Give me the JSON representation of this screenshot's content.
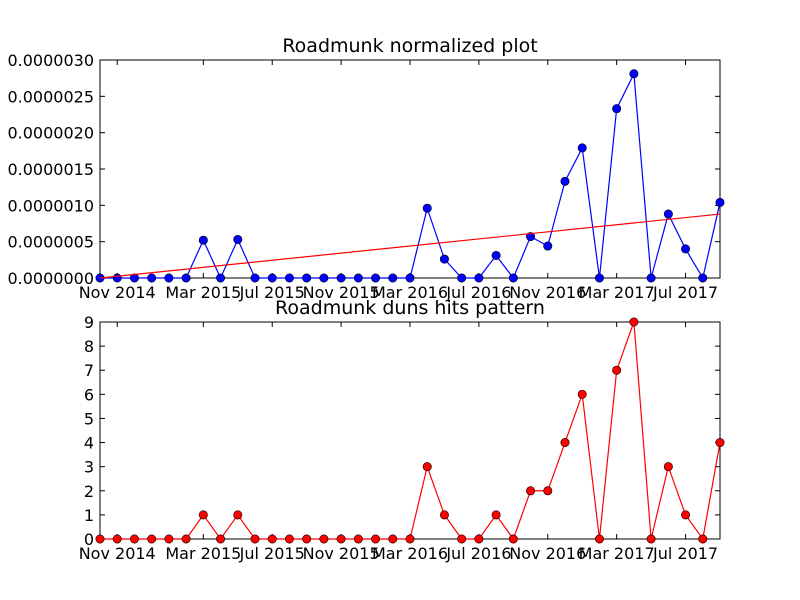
{
  "chart_data": [
    {
      "type": "line",
      "title": "Roadmunk normalized plot",
      "xlabel": "",
      "ylabel": "",
      "x_tick_labels": [
        "Nov 2014",
        "Mar 2015",
        "Jul 2015",
        "Nov 2015",
        "Mar 2016",
        "Jul 2016",
        "Nov 2016",
        "Mar 2017",
        "Jul 2017"
      ],
      "y_tick_labels": [
        "0.0000000",
        "0.0000005",
        "0.0000010",
        "0.0000015",
        "0.0000020",
        "0.0000025",
        "0.0000030"
      ],
      "ylim": [
        0,
        3e-06
      ],
      "grid": false,
      "series": [
        {
          "color": "#0000ff",
          "marker": "circle",
          "values": [
            0,
            0,
            0,
            0,
            0,
            0,
            5.2e-07,
            0,
            5.3e-07,
            0,
            0,
            0,
            0,
            0,
            0,
            0,
            0,
            0,
            0,
            9.6e-07,
            2.6e-07,
            0,
            0,
            3.1e-07,
            0,
            5.7e-07,
            4.4e-07,
            1.33e-06,
            1.79e-06,
            0,
            2.33e-06,
            2.81e-06,
            0,
            8.8e-07,
            4e-07,
            0,
            1.04e-06
          ]
        },
        {
          "color": "#ff0000",
          "marker": "none",
          "trend": [
            0,
            8.8e-07
          ]
        }
      ]
    },
    {
      "type": "line",
      "title": "Roadmunk duns hits pattern",
      "xlabel": "",
      "ylabel": "",
      "x_tick_labels": [
        "Nov 2014",
        "Mar 2015",
        "Jul 2015",
        "Nov 2015",
        "Mar 2016",
        "Jul 2016",
        "Nov 2016",
        "Mar 2017",
        "Jul 2017"
      ],
      "y_tick_labels": [
        "0",
        "1",
        "2",
        "3",
        "4",
        "5",
        "6",
        "7",
        "8",
        "9"
      ],
      "ylim": [
        0,
        9
      ],
      "grid": false,
      "series": [
        {
          "color": "#ff0000",
          "marker": "circle",
          "values": [
            0,
            0,
            0,
            0,
            0,
            0,
            1,
            0,
            1,
            0,
            0,
            0,
            0,
            0,
            0,
            0,
            0,
            0,
            0,
            3,
            1,
            0,
            0,
            1,
            0,
            2,
            2,
            4,
            6,
            0,
            7,
            9,
            0,
            3,
            1,
            0,
            4
          ]
        }
      ]
    }
  ]
}
